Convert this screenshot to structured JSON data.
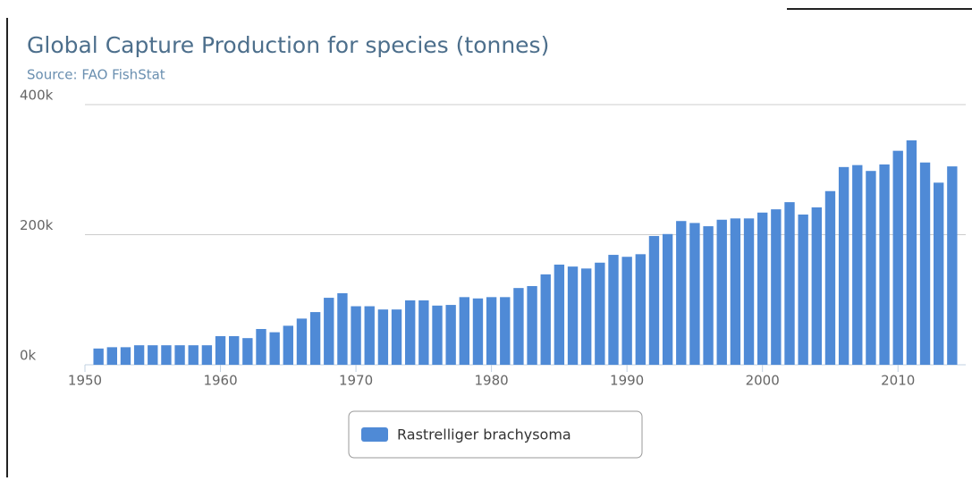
{
  "chart_data": {
    "type": "bar",
    "title": "Global Capture Production for species (tonnes)",
    "subtitle": "Source: FAO FishStat",
    "x": [
      1951,
      1952,
      1953,
      1954,
      1955,
      1956,
      1957,
      1958,
      1959,
      1960,
      1961,
      1962,
      1963,
      1964,
      1965,
      1966,
      1967,
      1968,
      1969,
      1970,
      1971,
      1972,
      1973,
      1974,
      1975,
      1976,
      1977,
      1978,
      1979,
      1980,
      1981,
      1982,
      1983,
      1984,
      1985,
      1986,
      1987,
      1988,
      1989,
      1990,
      1991,
      1992,
      1993,
      1994,
      1995,
      1996,
      1997,
      1998,
      1999,
      2000,
      2001,
      2002,
      2003,
      2004,
      2005,
      2006,
      2007,
      2008,
      2009,
      2010,
      2011,
      2012,
      2013,
      2014
    ],
    "series": [
      {
        "name": "Rastrelliger brachysoma",
        "color": "#4f8ad6",
        "values": [
          25000,
          27000,
          27000,
          30000,
          30000,
          30000,
          30000,
          30000,
          30000,
          44000,
          44000,
          41000,
          55000,
          50000,
          60000,
          71000,
          81000,
          103000,
          110000,
          90000,
          90000,
          85000,
          85000,
          99000,
          99000,
          91000,
          92000,
          104000,
          102000,
          104000,
          104000,
          118000,
          121000,
          139000,
          154000,
          151000,
          148000,
          157000,
          169000,
          166000,
          170000,
          198000,
          201000,
          221000,
          218000,
          213000,
          223000,
          225000,
          225000,
          234000,
          239000,
          250000,
          231000,
          242000,
          267000,
          304000,
          307000,
          298000,
          308000,
          329000,
          345000,
          311000,
          280000,
          305000
        ]
      }
    ],
    "xlim": [
      1950,
      2015
    ],
    "xticks": [
      1950,
      1960,
      1970,
      1980,
      1990,
      2000,
      2010
    ],
    "ylim": [
      0,
      400000
    ],
    "yticks": [
      {
        "value": 0,
        "label": "0k"
      },
      {
        "value": 200000,
        "label": "200k"
      },
      {
        "value": 400000,
        "label": "400k"
      }
    ],
    "grid": true
  }
}
